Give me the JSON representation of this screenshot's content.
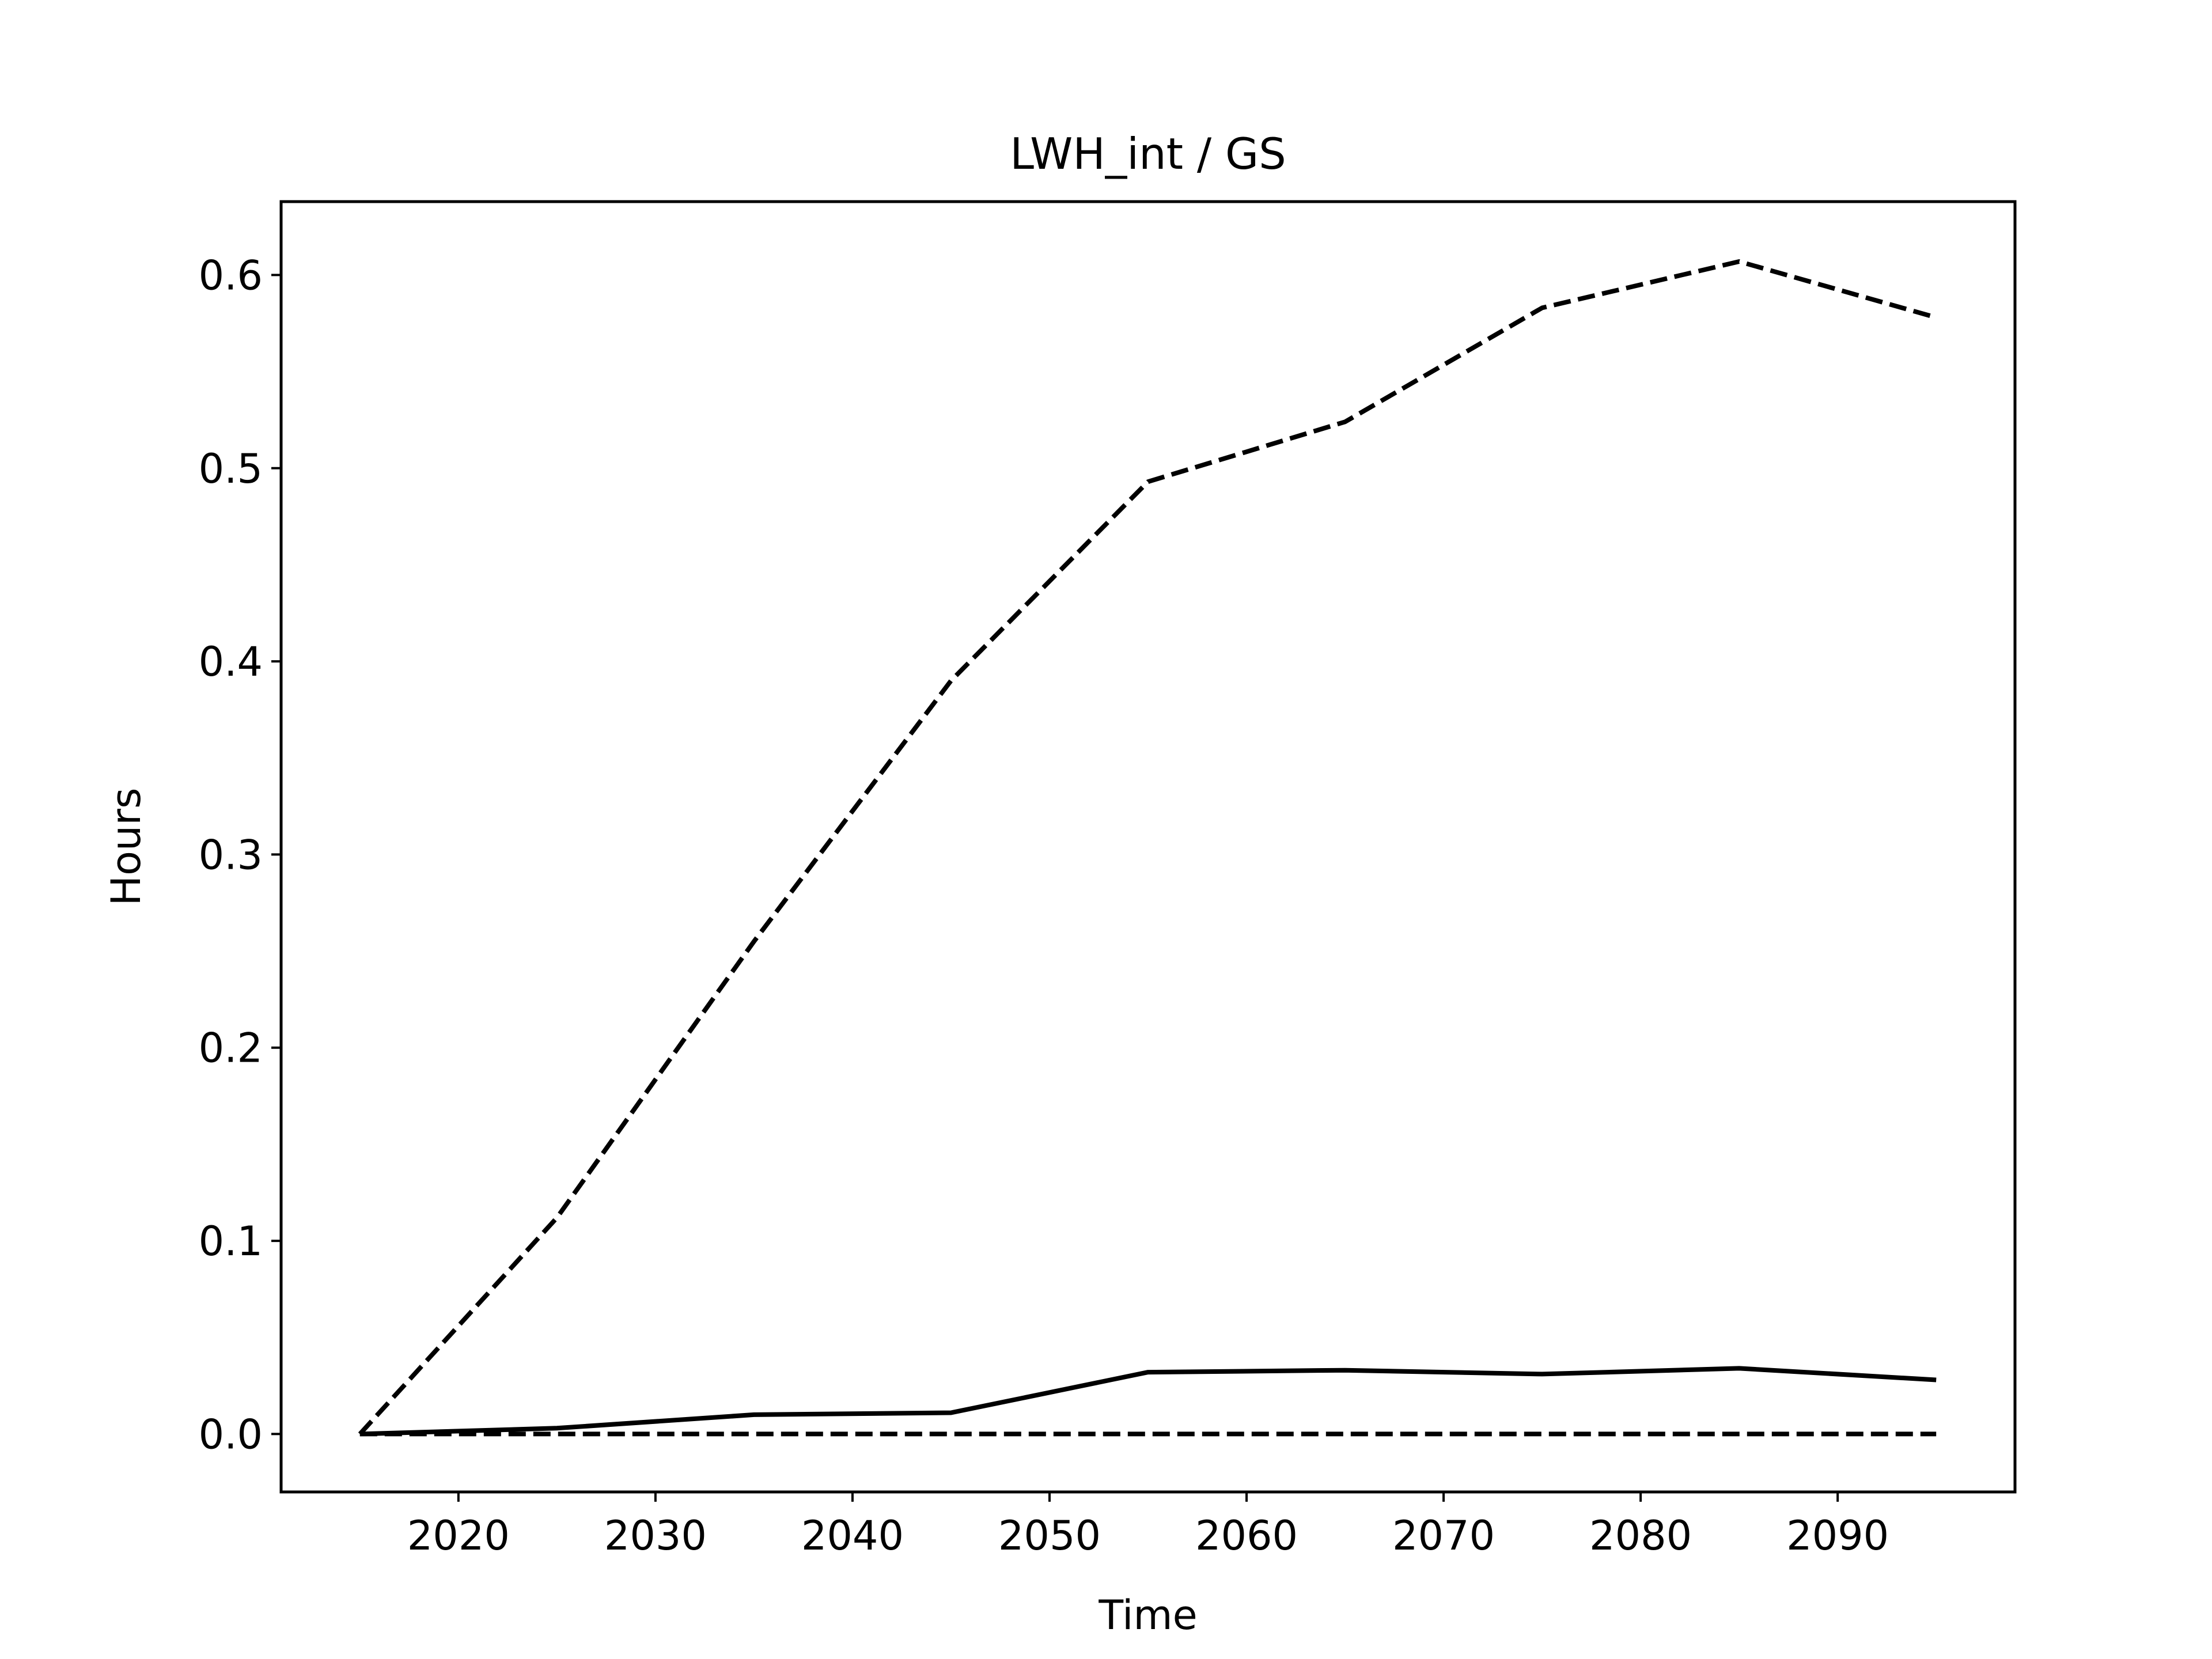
{
  "chart_data": {
    "type": "line",
    "title": "LWH_int / GS",
    "xlabel": "Time",
    "ylabel": "Hours",
    "xlim": [
      2011,
      2099
    ],
    "ylim": [
      -0.03,
      0.638
    ],
    "x_ticks": [
      2020,
      2030,
      2040,
      2050,
      2060,
      2070,
      2080,
      2090
    ],
    "y_ticks": [
      "0.0",
      "0.1",
      "0.2",
      "0.3",
      "0.4",
      "0.5",
      "0.6"
    ],
    "grid": false,
    "legend": "none",
    "x": [
      2015,
      2025,
      2035,
      2045,
      2055,
      2065,
      2075,
      2085,
      2095
    ],
    "series": [
      {
        "style": "dashed",
        "color": "#000000",
        "values": [
          0.0,
          0.112,
          0.255,
          0.39,
          0.493,
          0.524,
          0.583,
          0.607,
          0.578
        ]
      },
      {
        "style": "solid",
        "color": "#000000",
        "values": [
          0.0,
          0.003,
          0.01,
          0.011,
          0.032,
          0.033,
          0.031,
          0.034,
          0.028
        ]
      },
      {
        "style": "dashed",
        "color": "#000000",
        "values": [
          0.0,
          0.0,
          0.0,
          0.0,
          0.0,
          0.0,
          0.0,
          0.0,
          0.0
        ]
      }
    ]
  }
}
